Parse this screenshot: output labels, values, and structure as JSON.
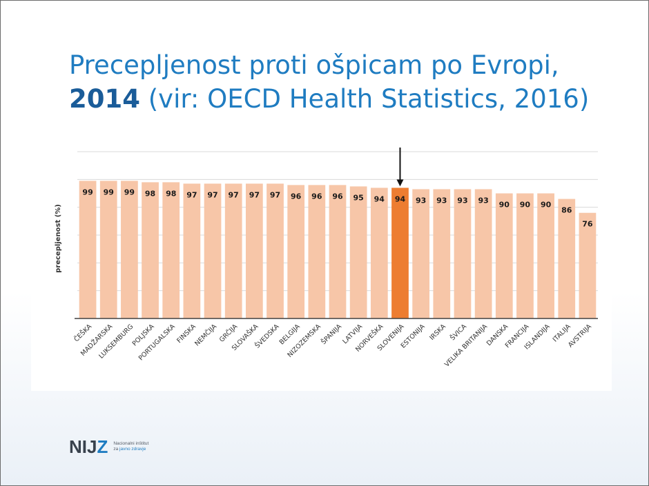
{
  "slide": {
    "title_line1": "Precepljenost proti ošpicam po Evropi,",
    "title_year": "2014",
    "title_source": " (vir: OECD Health Statistics, 2016)"
  },
  "logo": {
    "text_a": "NIJ",
    "text_b": "Z",
    "sub_line1": "Nacionalni inštitut",
    "sub_line2_a": "za ",
    "sub_line2_b": "javno zdravje"
  },
  "colors": {
    "bar": "#f7c6a8",
    "highlight": "#ed7d31",
    "grid": "#d9d9d9",
    "axis": "#404040",
    "title": "#1f7cc1"
  },
  "chart_data": {
    "type": "bar",
    "ylabel": "precepljenost (%)",
    "highlight": "SLOVENIJA",
    "ylim": [
      0,
      120
    ],
    "grid": true,
    "categories": [
      "ČEŠKA",
      "MADŽARSKA",
      "LUKSEMBURG",
      "POLJSKA",
      "PORTUGALSKA",
      "FINSKA",
      "NEMČIJA",
      "GRČIJA",
      "SLOVAŠKA",
      "ŠVEDSKA",
      "BELGIJA",
      "NIZOZEMSKA",
      "ŠPANIJA",
      "LATVIJA",
      "NORVEŠKA",
      "SLOVENIJA",
      "ESTONIJA",
      "IRSKA",
      "ŠVICA",
      "VELIKA BRITANIJA",
      "DANSKA",
      "FRANCIJA",
      "ISLANDIJA",
      "ITALIJA",
      "AVSTRIJA"
    ],
    "values": [
      99,
      99,
      99,
      98,
      98,
      97,
      97,
      97,
      97,
      97,
      96,
      96,
      96,
      95,
      94,
      94,
      93,
      93,
      93,
      93,
      90,
      90,
      90,
      86,
      76
    ]
  }
}
